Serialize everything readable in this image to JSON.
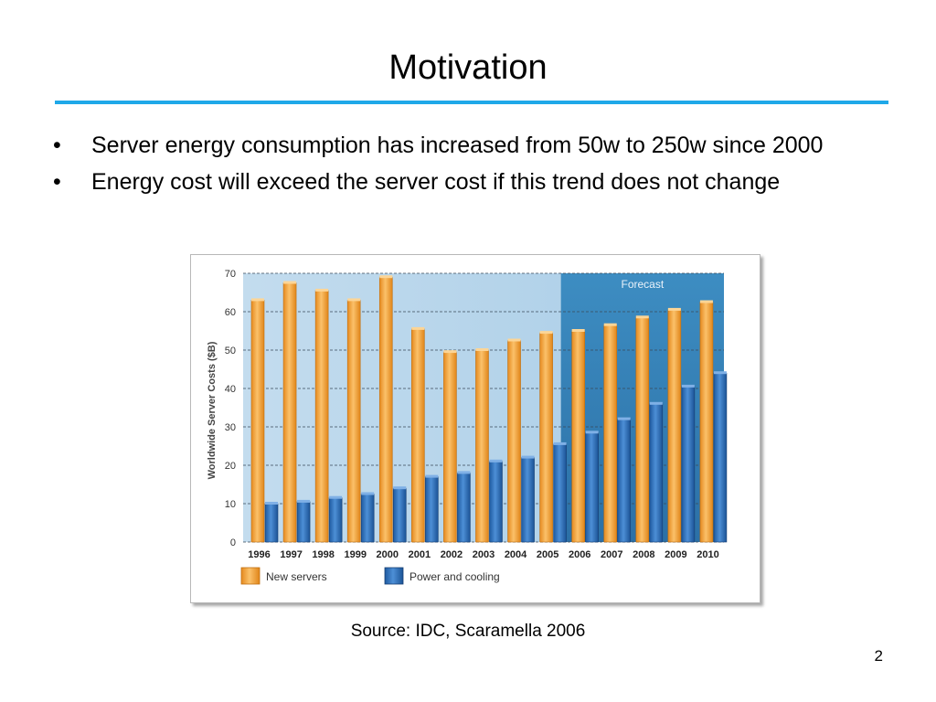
{
  "slide": {
    "title": "Motivation",
    "bullets": [
      "Server energy consumption has increased from 50w to 250w since 2000",
      "Energy cost will exceed the server cost if this trend does not change"
    ],
    "source": "Source: IDC, Scaramella 2006",
    "page_number": "2"
  },
  "colors": {
    "accent_rule": "#1fa8e8",
    "new_servers": "#f5a23a",
    "power_cooling": "#2e6fb7",
    "forecast_panel": "#3f90c4"
  },
  "chart_data": {
    "type": "bar",
    "title": "",
    "xlabel": "",
    "ylabel": "Worldwide Server Costs ($B)",
    "ylim": [
      0,
      70
    ],
    "yticks": [
      0,
      10,
      20,
      30,
      40,
      50,
      60,
      70
    ],
    "grid": true,
    "legend_position": "bottom",
    "categories": [
      "1996",
      "1997",
      "1998",
      "1999",
      "2000",
      "2001",
      "2002",
      "2003",
      "2004",
      "2005",
      "2006",
      "2007",
      "2008",
      "2009",
      "2010"
    ],
    "series": [
      {
        "name": "New servers",
        "values": [
          63,
          67.5,
          65.5,
          63,
          69,
          55.5,
          49.5,
          50,
          52.5,
          54.5,
          55,
          56.5,
          58.5,
          60.5,
          62.5
        ]
      },
      {
        "name": "Power and cooling",
        "values": [
          10,
          10.5,
          11.5,
          12.5,
          14,
          17,
          18,
          21,
          22,
          25.5,
          28.5,
          32,
          36,
          40.5,
          44
        ]
      }
    ],
    "annotation": {
      "label": "Forecast",
      "from_category": "2006",
      "to_category": "2010"
    }
  }
}
